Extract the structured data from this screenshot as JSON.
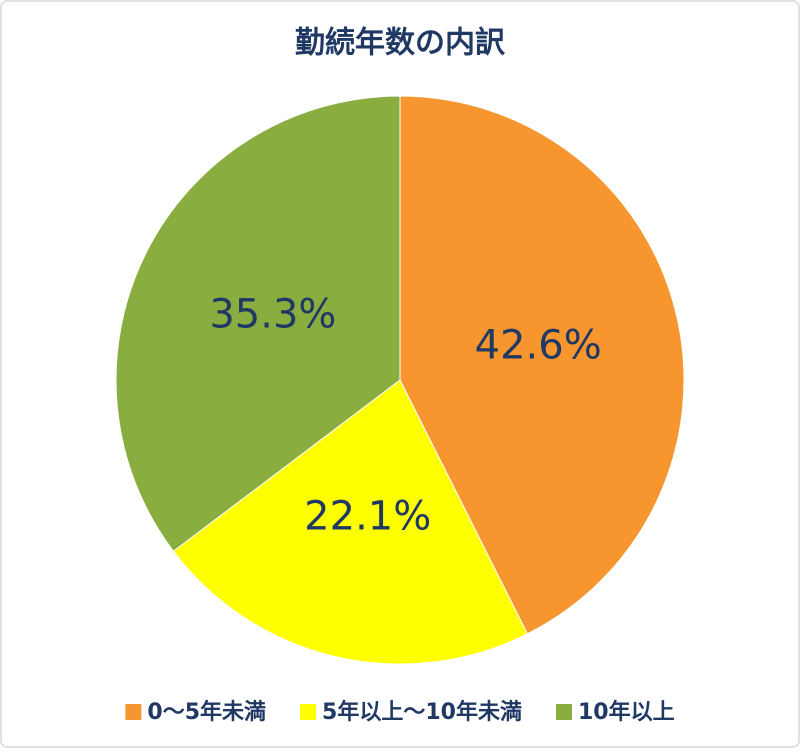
{
  "chart_data": {
    "type": "pie",
    "title": "勤続年数の内訳",
    "categories": [
      "0～5年未満",
      "5年以上～10年未満",
      "10年以上"
    ],
    "values": [
      42.6,
      22.1,
      35.3
    ],
    "value_labels": [
      "42.6%",
      "22.1%",
      "35.3%"
    ],
    "colors": [
      "#F7962F",
      "#FFFF00",
      "#8AAD40"
    ],
    "legend": "bottom"
  }
}
